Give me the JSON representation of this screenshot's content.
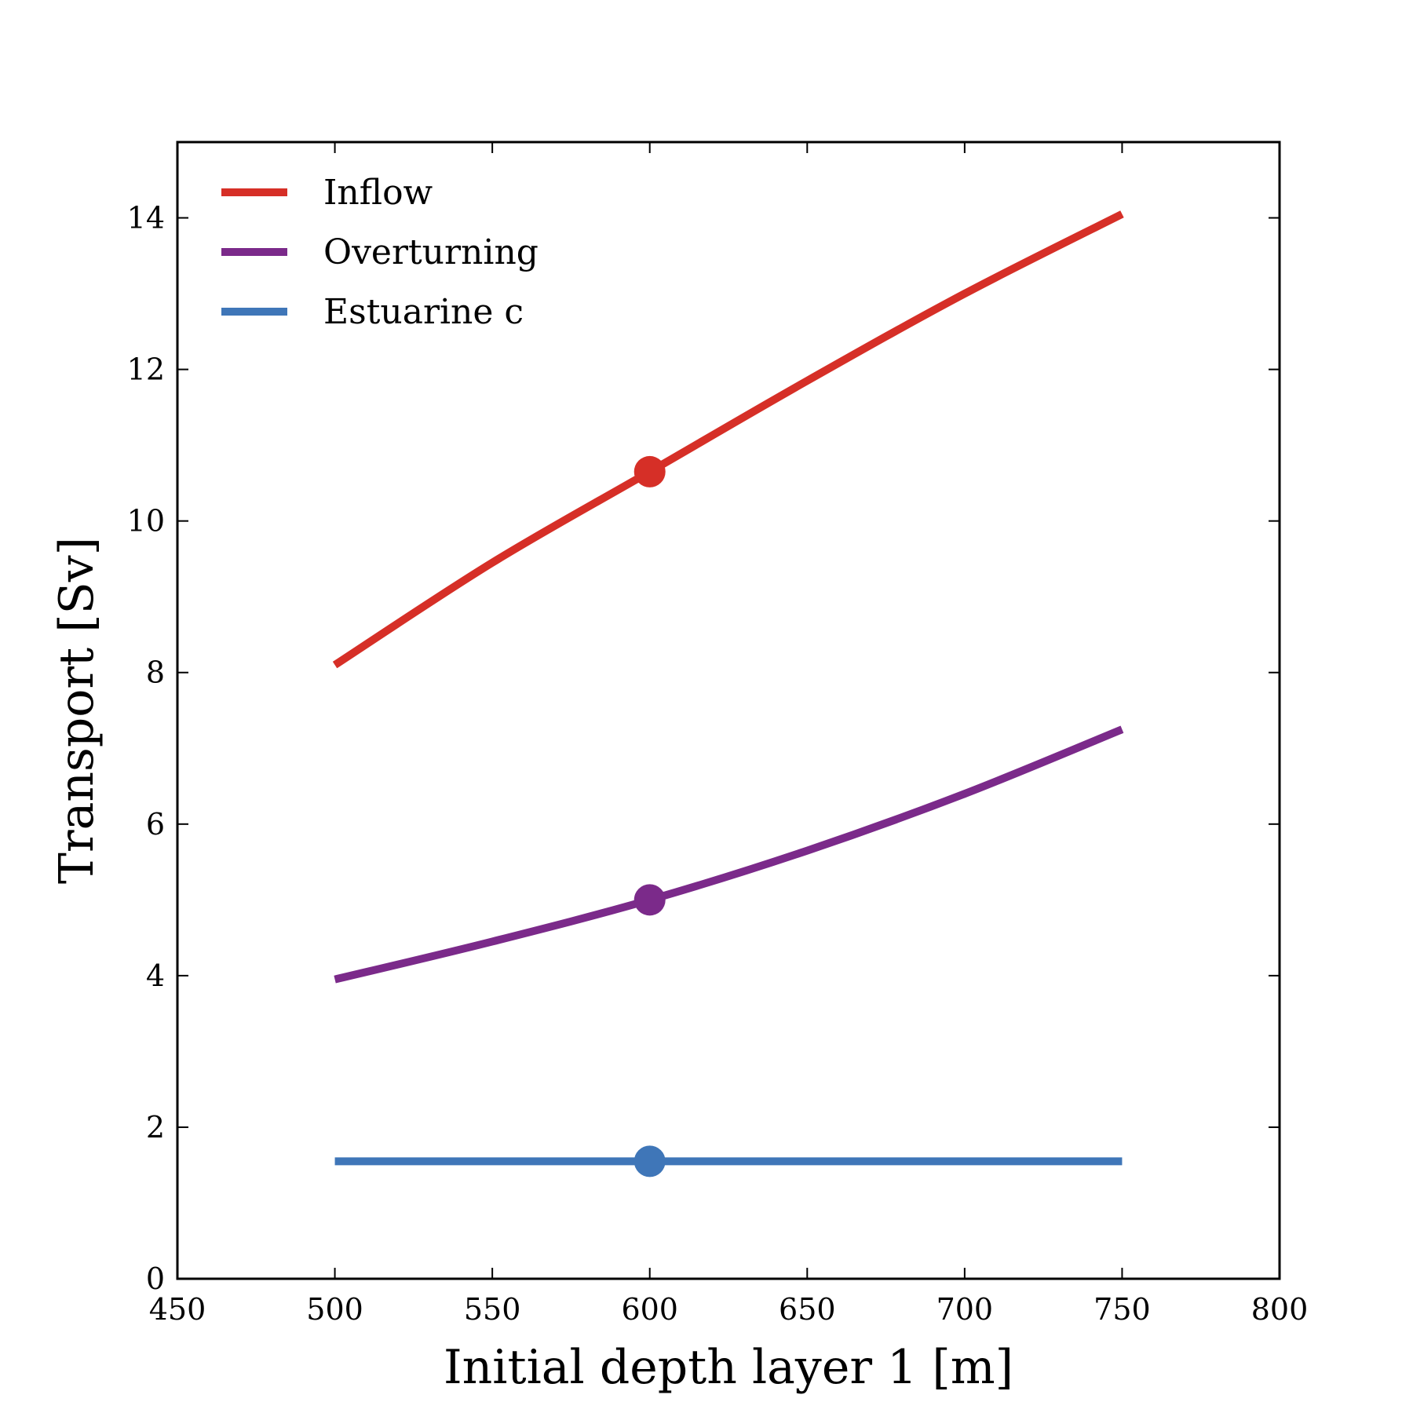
{
  "chart_data": {
    "type": "line",
    "xlabel": "Initial depth layer 1 [m]",
    "ylabel": "Transport [Sv]",
    "xlim": [
      450,
      800
    ],
    "ylim": [
      0,
      15
    ],
    "xticks": [
      450,
      500,
      550,
      600,
      650,
      700,
      750,
      800
    ],
    "yticks": [
      0,
      2,
      4,
      6,
      8,
      10,
      12,
      14
    ],
    "legend_position": "top-left",
    "grid": false,
    "series": [
      {
        "name": "Inflow",
        "color": "#d62f27",
        "x": [
          500,
          550,
          600,
          650,
          700,
          750
        ],
        "y": [
          8.1,
          9.45,
          10.65,
          11.85,
          13.0,
          14.05
        ],
        "marker": {
          "x": 600,
          "y": 10.65
        }
      },
      {
        "name": "Overturning",
        "color": "#7b2a8a",
        "x": [
          500,
          550,
          600,
          650,
          700,
          750
        ],
        "y": [
          3.95,
          4.45,
          5.0,
          5.65,
          6.4,
          7.25
        ],
        "marker": {
          "x": 600,
          "y": 5.0
        }
      },
      {
        "name": "Estuarine c",
        "color": "#3f76b8",
        "x": [
          500,
          550,
          600,
          650,
          700,
          750
        ],
        "y": [
          1.55,
          1.55,
          1.55,
          1.55,
          1.55,
          1.55
        ],
        "marker": {
          "x": 600,
          "y": 1.55
        }
      }
    ]
  }
}
